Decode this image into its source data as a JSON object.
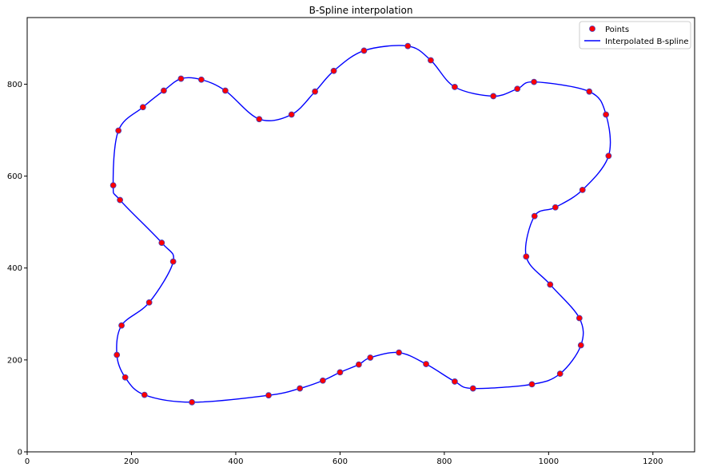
{
  "chart_data": {
    "type": "scatter",
    "title": "B-Spline interpolation",
    "xlabel": "",
    "ylabel": "",
    "xlim": [
      0,
      1280
    ],
    "ylim": [
      0,
      945
    ],
    "xticks": [
      0,
      200,
      400,
      600,
      800,
      1000,
      1200
    ],
    "yticks": [
      0,
      200,
      400,
      600,
      800
    ],
    "grid": false,
    "legend_position": "top-right",
    "series": [
      {
        "name": "Points",
        "kind": "markers",
        "color": "#ff0000",
        "edge_color": "#4040c0",
        "x": [
          165,
          175,
          222,
          262,
          295,
          334,
          380,
          445,
          507,
          552,
          588,
          646,
          730,
          774,
          820,
          894,
          940,
          972,
          1078,
          1110,
          1115,
          1065,
          1013,
          973,
          957,
          1003,
          1059,
          1062,
          1022,
          968,
          855,
          820,
          765,
          713,
          658,
          636,
          600,
          567,
          523,
          463,
          316,
          225,
          188,
          172,
          181,
          234,
          280,
          258,
          178
        ],
        "y": [
          580,
          699,
          750,
          786,
          812,
          810,
          786,
          724,
          734,
          784,
          829,
          873,
          883,
          852,
          794,
          774,
          790,
          805,
          784,
          734,
          644,
          570,
          532,
          513,
          425,
          364,
          291,
          232,
          170,
          147,
          138,
          153,
          191,
          216,
          205,
          190,
          173,
          155,
          138,
          123,
          108,
          124,
          162,
          211,
          275,
          325,
          414,
          455,
          548
        ]
      },
      {
        "name": "Interpolated B-spline",
        "kind": "line",
        "color": "#0000ff"
      }
    ]
  }
}
